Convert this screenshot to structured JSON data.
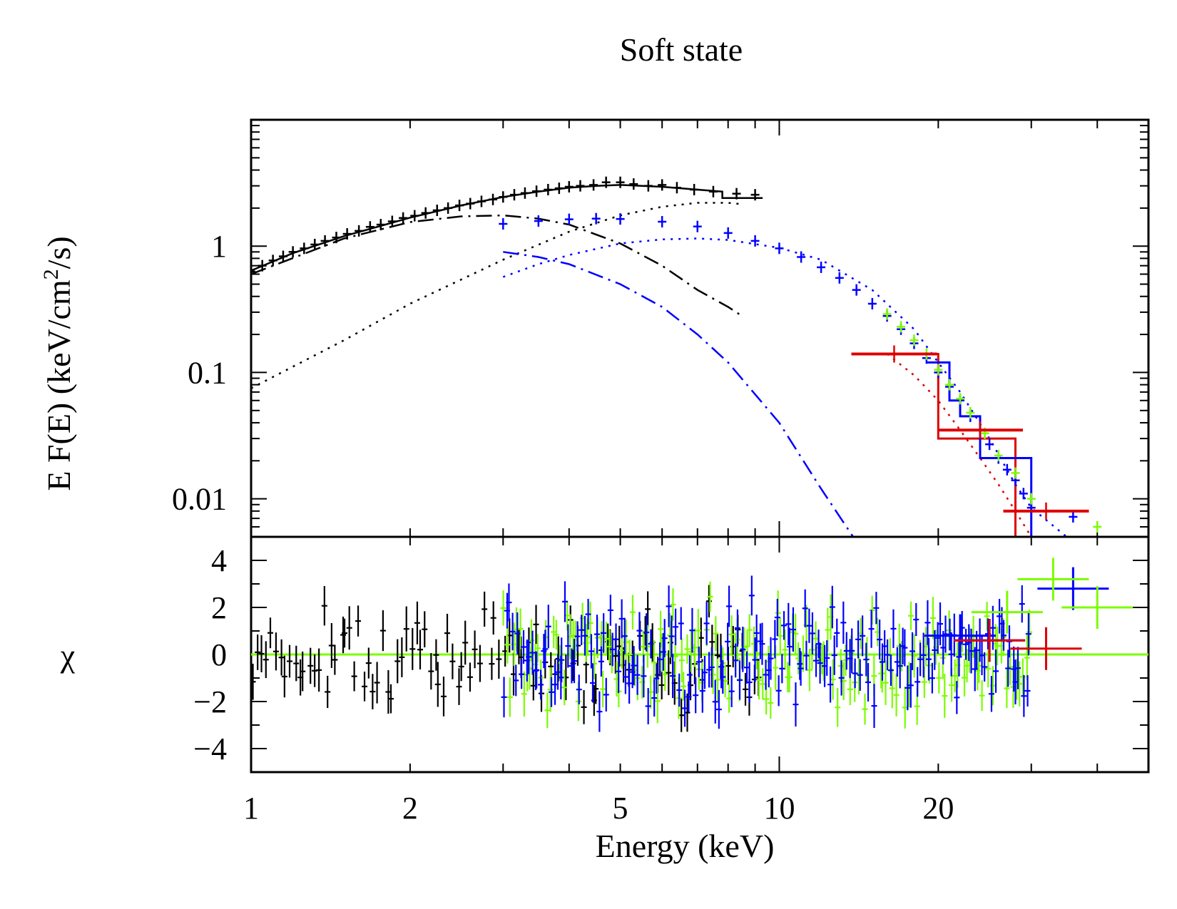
{
  "chart_data": [
    {
      "type": "scatter",
      "panel": "spectrum",
      "title": "Soft state",
      "xlabel": "Energy (keV)",
      "ylabel_main": "E F(E) (keV/cm",
      "ylabel_sup": "2",
      "ylabel_end": "/s)",
      "xscale": "log",
      "yscale": "log",
      "xlim": [
        1,
        50
      ],
      "ylim": [
        0.005,
        10
      ],
      "x_ticks": [
        "1",
        "2",
        "5",
        "10",
        "20"
      ],
      "y_ticks": [
        "0.01",
        "0.1",
        "1"
      ],
      "series": [
        {
          "color": "#000000",
          "points": [
            [
              1.0,
              0.63
            ],
            [
              1.05,
              0.7
            ],
            [
              1.1,
              0.77
            ],
            [
              1.15,
              0.83
            ],
            [
              1.2,
              0.9
            ],
            [
              1.26,
              0.96
            ],
            [
              1.32,
              1.03
            ],
            [
              1.38,
              1.1
            ],
            [
              1.45,
              1.17
            ],
            [
              1.52,
              1.25
            ],
            [
              1.6,
              1.32
            ],
            [
              1.68,
              1.42
            ],
            [
              1.76,
              1.48
            ],
            [
              1.85,
              1.57
            ],
            [
              1.94,
              1.67
            ],
            [
              2.04,
              1.74
            ],
            [
              2.14,
              1.83
            ],
            [
              2.25,
              1.92
            ],
            [
              2.36,
              2.0
            ],
            [
              2.48,
              2.1
            ],
            [
              2.6,
              2.17
            ],
            [
              2.73,
              2.26
            ],
            [
              2.87,
              2.34
            ],
            [
              3.0,
              2.45
            ],
            [
              3.15,
              2.55
            ],
            [
              3.3,
              2.63
            ],
            [
              3.47,
              2.72
            ],
            [
              3.65,
              2.8
            ],
            [
              3.83,
              2.87
            ],
            [
              4.0,
              2.95
            ],
            [
              4.2,
              3.0
            ],
            [
              4.45,
              3.05
            ],
            [
              4.7,
              3.2
            ],
            [
              5.0,
              3.2
            ],
            [
              5.3,
              3.1
            ],
            [
              5.65,
              3.0
            ],
            [
              6.0,
              3.05
            ],
            [
              6.4,
              2.9
            ],
            [
              6.9,
              2.8
            ],
            [
              7.5,
              2.7
            ],
            [
              8.3,
              2.6
            ],
            [
              9.0,
              2.55
            ]
          ]
        },
        {
          "color": "#0000ff",
          "points": [
            [
              3.0,
              1.5
            ],
            [
              3.5,
              1.58
            ],
            [
              4.0,
              1.63
            ],
            [
              4.5,
              1.65
            ],
            [
              5.0,
              1.64
            ],
            [
              6.0,
              1.56
            ],
            [
              7.0,
              1.43
            ],
            [
              8.0,
              1.27
            ],
            [
              9.0,
              1.1
            ],
            [
              10.0,
              0.96
            ],
            [
              11.0,
              0.82
            ],
            [
              12.0,
              0.68
            ],
            [
              13.0,
              0.56
            ],
            [
              14.0,
              0.45
            ],
            [
              15.0,
              0.35
            ],
            [
              16.0,
              0.28
            ],
            [
              17.0,
              0.22
            ],
            [
              18.0,
              0.17
            ],
            [
              19.0,
              0.13
            ],
            [
              20.0,
              0.1
            ],
            [
              21.0,
              0.077
            ],
            [
              22.0,
              0.06
            ],
            [
              23.0,
              0.045
            ],
            [
              24.0,
              0.035
            ],
            [
              25.0,
              0.027
            ],
            [
              26.0,
              0.021
            ],
            [
              27.0,
              0.017
            ],
            [
              28.0,
              0.014
            ],
            [
              29.0,
              0.011
            ],
            [
              30.0,
              0.0085
            ],
            [
              36.0,
              0.0072
            ]
          ]
        },
        {
          "color": "#7cfc00",
          "points": [
            [
              16.0,
              0.29
            ],
            [
              17.0,
              0.23
            ],
            [
              18.0,
              0.18
            ],
            [
              19.0,
              0.14
            ],
            [
              20.0,
              0.105
            ],
            [
              21.0,
              0.08
            ],
            [
              22.0,
              0.062
            ],
            [
              23.0,
              0.048
            ],
            [
              24.5,
              0.033
            ],
            [
              26.0,
              0.022
            ],
            [
              28.0,
              0.016
            ],
            [
              30.0,
              0.01
            ],
            [
              40.0,
              0.006
            ]
          ]
        },
        {
          "color": "#dd0000",
          "points": [
            [
              16.5,
              0.14
            ],
            [
              24.0,
              0.035
            ],
            [
              32.0,
              0.008
            ]
          ]
        }
      ],
      "models": [
        {
          "color": "#000000",
          "style": "solid",
          "x": [
            1.0,
            1.2,
            1.5,
            2.0,
            2.5,
            3.0,
            3.5,
            4.0,
            4.5,
            5.0,
            6.0,
            7.0,
            7.8,
            7.8,
            9.3
          ],
          "y": [
            0.64,
            0.88,
            1.2,
            1.68,
            2.1,
            2.45,
            2.7,
            2.9,
            3.0,
            3.05,
            2.95,
            2.8,
            2.7,
            2.4,
            2.4
          ]
        },
        {
          "color": "#000000",
          "style": "dashdot",
          "x": [
            1.0,
            1.5,
            2.0,
            2.5,
            3.0,
            3.5,
            4.0,
            5.0,
            6.0,
            7.0,
            8.0,
            8.5
          ],
          "y": [
            0.6,
            1.15,
            1.55,
            1.72,
            1.75,
            1.65,
            1.48,
            1.05,
            0.7,
            0.45,
            0.33,
            0.28
          ]
        },
        {
          "color": "#000000",
          "style": "dotted",
          "x": [
            1.0,
            1.5,
            2.0,
            3.0,
            4.0,
            5.0,
            6.0,
            7.0,
            8.0,
            8.5
          ],
          "y": [
            0.075,
            0.18,
            0.35,
            0.78,
            1.3,
            1.75,
            2.05,
            2.2,
            2.2,
            2.15
          ]
        },
        {
          "color": "#0000ff",
          "style": "dashdot",
          "x": [
            3.0,
            3.5,
            4.0,
            5.0,
            6.0,
            7.0,
            8.0,
            10.0,
            12.0,
            13.8
          ],
          "y": [
            0.9,
            0.82,
            0.72,
            0.5,
            0.33,
            0.2,
            0.12,
            0.04,
            0.012,
            0.005
          ]
        },
        {
          "color": "#0000ff",
          "style": "dotted",
          "x": [
            3.0,
            3.5,
            4.0,
            5.0,
            6.0,
            7.0,
            8.0,
            10.0,
            12.0,
            15.0,
            18.0,
            20.0,
            22.0,
            25.0,
            28.0,
            30.0,
            35.0
          ],
          "y": [
            0.57,
            0.72,
            0.85,
            1.05,
            1.13,
            1.15,
            1.12,
            0.97,
            0.78,
            0.45,
            0.22,
            0.12,
            0.07,
            0.03,
            0.013,
            0.0085,
            0.005
          ]
        },
        {
          "color": "#dd0000",
          "style": "dotted",
          "x": [
            16.0,
            18.0,
            20.0,
            22.0,
            24.0,
            26.0,
            28.0,
            30.0
          ],
          "y": [
            0.14,
            0.095,
            0.06,
            0.035,
            0.021,
            0.013,
            0.008,
            0.005
          ]
        },
        {
          "color": "#dd0000",
          "style": "step",
          "x": [
            14.0,
            20.0,
            20.0,
            28.0,
            28.0,
            30.0,
            30.0
          ],
          "y": [
            0.14,
            0.14,
            0.03,
            0.03,
            0.005,
            0.005,
            0.005
          ]
        },
        {
          "color": "#0000ff",
          "style": "step",
          "x": [
            19.0,
            21.0,
            21.0,
            22.0,
            22.0,
            24.0,
            24.0,
            30.0,
            30.0
          ],
          "y": [
            0.12,
            0.12,
            0.06,
            0.06,
            0.045,
            0.045,
            0.021,
            0.021,
            0.005
          ]
        }
      ]
    },
    {
      "type": "scatter",
      "panel": "residuals",
      "ylabel": "χ",
      "xscale": "log",
      "xlim": [
        1,
        50
      ],
      "ylim": [
        -5,
        5
      ],
      "y_ticks": [
        "4",
        "2",
        "0",
        "−2",
        "−4"
      ],
      "zero_line_color": "#7cfc00",
      "series": [
        {
          "color": "#000000",
          "x_range": [
            1.0,
            9.3
          ],
          "n": 110,
          "amplitude": 2.0
        },
        {
          "color": "#7cfc00",
          "x_range": [
            3.0,
            30.0
          ],
          "n": 170,
          "amplitude": 2.2
        },
        {
          "color": "#0000ff",
          "x_range": [
            3.0,
            30.0
          ],
          "n": 190,
          "amplitude": 2.2
        },
        {
          "color": "#0000ff",
          "points": [
            [
              22.0,
              0.8
            ],
            [
              25.0,
              0.6
            ],
            [
              36.0,
              2.8
            ]
          ]
        },
        {
          "color": "#7cfc00",
          "points": [
            [
              27.0,
              1.8
            ],
            [
              33.0,
              3.2
            ],
            [
              40.0,
              2.0
            ]
          ]
        },
        {
          "color": "#dd0000",
          "points": [
            [
              25.0,
              0.6
            ],
            [
              32.0,
              0.25
            ]
          ]
        }
      ]
    }
  ]
}
